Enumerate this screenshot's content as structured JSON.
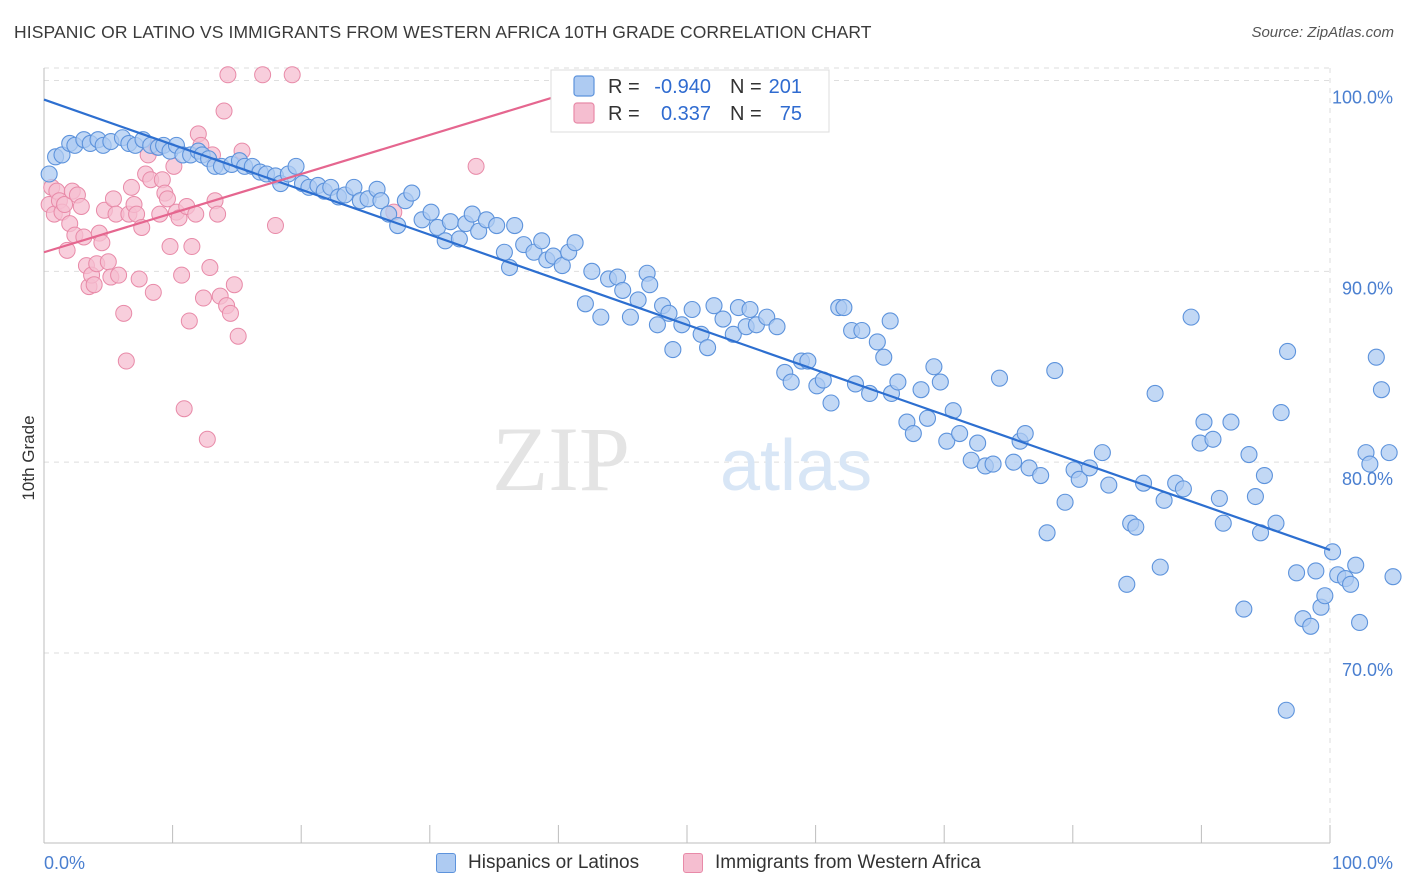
{
  "title": "HISPANIC OR LATINO VS IMMIGRANTS FROM WESTERN AFRICA 10TH GRADE CORRELATION CHART",
  "source": "Source: ZipAtlas.com",
  "watermark": {
    "zip": "ZIP",
    "atlas": "atlas"
  },
  "colors": {
    "blue_fill": "#aecbf2",
    "blue_stroke": "#5d93dc",
    "blue_line": "#2d6fd0",
    "pink_fill": "#f5bed0",
    "pink_stroke": "#e88aa8",
    "pink_line": "#e5668f",
    "grid": "#dedede",
    "tick_text": "#4a7fd0"
  },
  "legend": {
    "rows": [
      {
        "r_label": "R =",
        "r_value": "-0.940",
        "n_label": "N =",
        "n_value": "201"
      },
      {
        "r_label": "R =",
        "r_value": "0.337",
        "n_label": "N =",
        "n_value": "75"
      }
    ]
  },
  "bottom_legend": [
    "Hispanics or Latinos",
    "Immigrants from Western Africa"
  ],
  "chart_data": {
    "type": "scatter",
    "title": "HISPANIC OR LATINO VS IMMIGRANTS FROM WESTERN AFRICA 10TH GRADE CORRELATION CHART",
    "xlabel": "",
    "ylabel": "10th Grade",
    "xlim": [
      0,
      100
    ],
    "ylim": [
      60,
      101.5
    ],
    "x_tick_labels": [
      "0.0%",
      "100.0%"
    ],
    "y_ticks": [
      70,
      80,
      90,
      100
    ],
    "y_tick_labels": [
      "70.0%",
      "80.0%",
      "90.0%",
      "100.0%"
    ],
    "grid": true,
    "legend_position": "top-center",
    "series": [
      {
        "name": "Hispanics or Latinos",
        "r": -0.94,
        "n": 201,
        "trend": {
          "x": [
            0,
            100
          ],
          "y": [
            99.0,
            75.4
          ]
        },
        "points": [
          [
            0.4,
            95.1
          ],
          [
            0.9,
            96.0
          ],
          [
            1.4,
            96.1
          ],
          [
            2.0,
            96.7
          ],
          [
            2.4,
            96.6
          ],
          [
            3.1,
            96.9
          ],
          [
            3.6,
            96.7
          ],
          [
            4.2,
            96.9
          ],
          [
            4.6,
            96.6
          ],
          [
            5.2,
            96.8
          ],
          [
            6.1,
            97.0
          ],
          [
            6.6,
            96.7
          ],
          [
            7.1,
            96.6
          ],
          [
            7.7,
            96.9
          ],
          [
            8.3,
            96.6
          ],
          [
            8.9,
            96.5
          ],
          [
            9.3,
            96.6
          ],
          [
            9.8,
            96.3
          ],
          [
            10.3,
            96.6
          ],
          [
            10.8,
            96.1
          ],
          [
            11.4,
            96.1
          ],
          [
            12.0,
            96.3
          ],
          [
            12.3,
            96.1
          ],
          [
            12.8,
            95.9
          ],
          [
            13.3,
            95.5
          ],
          [
            13.8,
            95.5
          ],
          [
            14.6,
            95.6
          ],
          [
            15.2,
            95.8
          ],
          [
            15.6,
            95.5
          ],
          [
            16.2,
            95.5
          ],
          [
            16.8,
            95.2
          ],
          [
            17.3,
            95.1
          ],
          [
            18.0,
            95.0
          ],
          [
            18.4,
            94.6
          ],
          [
            19.0,
            95.1
          ],
          [
            19.6,
            95.5
          ],
          [
            20.1,
            94.6
          ],
          [
            20.6,
            94.4
          ],
          [
            21.3,
            94.5
          ],
          [
            21.8,
            94.2
          ],
          [
            22.3,
            94.4
          ],
          [
            22.9,
            93.9
          ],
          [
            23.4,
            94.0
          ],
          [
            24.1,
            94.4
          ],
          [
            24.6,
            93.7
          ],
          [
            25.2,
            93.8
          ],
          [
            25.9,
            94.3
          ],
          [
            26.2,
            93.7
          ],
          [
            26.8,
            93.0
          ],
          [
            27.5,
            92.4
          ],
          [
            28.1,
            93.7
          ],
          [
            28.6,
            94.1
          ],
          [
            29.4,
            92.7
          ],
          [
            30.1,
            93.1
          ],
          [
            30.6,
            92.3
          ],
          [
            31.2,
            91.6
          ],
          [
            31.6,
            92.6
          ],
          [
            32.3,
            91.7
          ],
          [
            32.8,
            92.5
          ],
          [
            33.3,
            93.0
          ],
          [
            33.8,
            92.1
          ],
          [
            34.4,
            92.7
          ],
          [
            35.2,
            92.4
          ],
          [
            35.8,
            91.0
          ],
          [
            36.2,
            90.2
          ],
          [
            36.6,
            92.4
          ],
          [
            37.3,
            91.4
          ],
          [
            38.1,
            91.0
          ],
          [
            38.7,
            91.6
          ],
          [
            39.1,
            90.6
          ],
          [
            39.6,
            90.8
          ],
          [
            40.3,
            90.3
          ],
          [
            40.8,
            91.0
          ],
          [
            41.3,
            91.5
          ],
          [
            42.1,
            88.3
          ],
          [
            42.6,
            90.0
          ],
          [
            43.3,
            87.6
          ],
          [
            43.9,
            89.6
          ],
          [
            44.6,
            89.7
          ],
          [
            45.0,
            89.0
          ],
          [
            45.6,
            87.6
          ],
          [
            46.2,
            88.5
          ],
          [
            46.9,
            89.9
          ],
          [
            47.1,
            89.3
          ],
          [
            47.7,
            87.2
          ],
          [
            48.1,
            88.2
          ],
          [
            48.6,
            87.8
          ],
          [
            48.9,
            85.9
          ],
          [
            49.6,
            87.2
          ],
          [
            50.4,
            88.0
          ],
          [
            51.1,
            86.7
          ],
          [
            51.6,
            86.0
          ],
          [
            52.1,
            88.2
          ],
          [
            52.8,
            87.5
          ],
          [
            53.6,
            86.7
          ],
          [
            54.0,
            88.1
          ],
          [
            54.6,
            87.1
          ],
          [
            54.9,
            88.0
          ],
          [
            55.4,
            87.2
          ],
          [
            56.2,
            87.6
          ],
          [
            57.0,
            87.1
          ],
          [
            57.6,
            84.7
          ],
          [
            58.1,
            84.2
          ],
          [
            58.9,
            85.3
          ],
          [
            59.4,
            85.3
          ],
          [
            60.1,
            84.0
          ],
          [
            60.6,
            84.3
          ],
          [
            61.2,
            83.1
          ],
          [
            61.8,
            88.1
          ],
          [
            62.2,
            88.1
          ],
          [
            62.8,
            86.9
          ],
          [
            63.1,
            84.1
          ],
          [
            63.6,
            86.9
          ],
          [
            64.2,
            83.6
          ],
          [
            64.8,
            86.3
          ],
          [
            65.3,
            85.5
          ],
          [
            65.8,
            87.4
          ],
          [
            65.9,
            83.6
          ],
          [
            66.4,
            84.2
          ],
          [
            67.1,
            82.1
          ],
          [
            67.6,
            81.5
          ],
          [
            68.2,
            83.8
          ],
          [
            68.7,
            82.3
          ],
          [
            69.2,
            85.0
          ],
          [
            69.7,
            84.2
          ],
          [
            70.2,
            81.1
          ],
          [
            70.7,
            82.7
          ],
          [
            71.2,
            81.5
          ],
          [
            72.1,
            80.1
          ],
          [
            72.6,
            81.0
          ],
          [
            73.2,
            79.8
          ],
          [
            73.8,
            79.9
          ],
          [
            74.3,
            84.4
          ],
          [
            75.4,
            80.0
          ],
          [
            75.9,
            81.1
          ],
          [
            76.3,
            81.5
          ],
          [
            76.6,
            79.7
          ],
          [
            77.5,
            79.3
          ],
          [
            78.0,
            76.3
          ],
          [
            78.6,
            84.8
          ],
          [
            79.4,
            77.9
          ],
          [
            80.1,
            79.6
          ],
          [
            80.5,
            79.1
          ],
          [
            81.3,
            79.7
          ],
          [
            82.3,
            80.5
          ],
          [
            82.8,
            78.8
          ],
          [
            84.2,
            73.6
          ],
          [
            84.5,
            76.8
          ],
          [
            84.9,
            76.6
          ],
          [
            85.5,
            78.9
          ],
          [
            86.4,
            83.6
          ],
          [
            86.8,
            74.5
          ],
          [
            87.1,
            78.0
          ],
          [
            88.0,
            78.9
          ],
          [
            88.6,
            78.6
          ],
          [
            89.2,
            87.6
          ],
          [
            89.9,
            81.0
          ],
          [
            90.2,
            82.1
          ],
          [
            90.9,
            81.2
          ],
          [
            91.4,
            78.1
          ],
          [
            91.7,
            76.8
          ],
          [
            92.3,
            82.1
          ],
          [
            93.3,
            72.3
          ],
          [
            93.7,
            80.4
          ],
          [
            94.2,
            78.2
          ],
          [
            94.6,
            76.3
          ],
          [
            94.9,
            79.3
          ],
          [
            95.8,
            76.8
          ],
          [
            96.2,
            82.6
          ],
          [
            96.7,
            85.8
          ],
          [
            97.4,
            74.2
          ],
          [
            97.9,
            71.8
          ],
          [
            98.5,
            71.4
          ],
          [
            98.9,
            74.3
          ],
          [
            99.3,
            72.4
          ],
          [
            99.6,
            73.0
          ],
          [
            100.2,
            75.3
          ],
          [
            100.6,
            74.1
          ],
          [
            101.2,
            73.9
          ],
          [
            101.6,
            73.6
          ],
          [
            102.0,
            74.6
          ],
          [
            102.3,
            71.6
          ],
          [
            102.8,
            80.5
          ],
          [
            103.1,
            79.9
          ],
          [
            103.6,
            85.5
          ],
          [
            104.0,
            83.8
          ],
          [
            104.6,
            80.5
          ],
          [
            104.9,
            74.0
          ],
          [
            96.6,
            67.0
          ]
        ]
      },
      {
        "name": "Immigrants from Western Africa",
        "r": 0.337,
        "n": 75,
        "trend": {
          "x": [
            0,
            40
          ],
          "y": [
            91.0,
            99.2
          ]
        },
        "points": [
          [
            0.4,
            93.5
          ],
          [
            0.6,
            94.4
          ],
          [
            0.8,
            93.0
          ],
          [
            1.0,
            94.2
          ],
          [
            1.2,
            93.7
          ],
          [
            1.4,
            93.1
          ],
          [
            1.6,
            93.5
          ],
          [
            1.8,
            91.1
          ],
          [
            2.0,
            92.5
          ],
          [
            2.2,
            94.2
          ],
          [
            2.4,
            91.9
          ],
          [
            2.6,
            94.0
          ],
          [
            2.9,
            93.4
          ],
          [
            3.1,
            91.8
          ],
          [
            3.3,
            90.3
          ],
          [
            3.5,
            89.2
          ],
          [
            3.7,
            89.8
          ],
          [
            3.9,
            89.3
          ],
          [
            4.1,
            90.4
          ],
          [
            4.3,
            92.0
          ],
          [
            4.5,
            91.5
          ],
          [
            4.7,
            93.2
          ],
          [
            5.0,
            90.5
          ],
          [
            5.2,
            89.7
          ],
          [
            5.4,
            93.8
          ],
          [
            5.6,
            93.0
          ],
          [
            5.8,
            89.8
          ],
          [
            6.2,
            87.8
          ],
          [
            6.4,
            85.3
          ],
          [
            6.6,
            93.0
          ],
          [
            6.8,
            94.4
          ],
          [
            7.0,
            93.5
          ],
          [
            7.2,
            93.0
          ],
          [
            7.4,
            89.6
          ],
          [
            7.6,
            92.3
          ],
          [
            7.9,
            95.1
          ],
          [
            8.1,
            96.1
          ],
          [
            8.3,
            94.8
          ],
          [
            8.5,
            88.9
          ],
          [
            8.8,
            96.5
          ],
          [
            9.0,
            93.0
          ],
          [
            9.2,
            94.8
          ],
          [
            9.4,
            94.1
          ],
          [
            9.6,
            93.8
          ],
          [
            9.8,
            91.3
          ],
          [
            10.1,
            95.5
          ],
          [
            10.3,
            93.1
          ],
          [
            10.5,
            92.8
          ],
          [
            10.7,
            89.8
          ],
          [
            10.9,
            82.8
          ],
          [
            11.1,
            93.4
          ],
          [
            11.3,
            87.4
          ],
          [
            11.5,
            91.3
          ],
          [
            11.8,
            93.0
          ],
          [
            12.0,
            97.2
          ],
          [
            12.2,
            96.6
          ],
          [
            12.4,
            88.6
          ],
          [
            12.7,
            81.2
          ],
          [
            12.9,
            90.2
          ],
          [
            13.1,
            96.1
          ],
          [
            13.3,
            93.7
          ],
          [
            13.5,
            93.0
          ],
          [
            13.7,
            88.7
          ],
          [
            14.0,
            98.4
          ],
          [
            14.2,
            88.2
          ],
          [
            14.5,
            87.8
          ],
          [
            14.8,
            89.3
          ],
          [
            15.1,
            86.6
          ],
          [
            15.4,
            96.3
          ],
          [
            18.0,
            92.4
          ],
          [
            27.2,
            93.1
          ],
          [
            33.6,
            95.5
          ],
          [
            14.3,
            100.3
          ],
          [
            17.0,
            100.3
          ],
          [
            19.3,
            100.3
          ]
        ]
      }
    ]
  }
}
